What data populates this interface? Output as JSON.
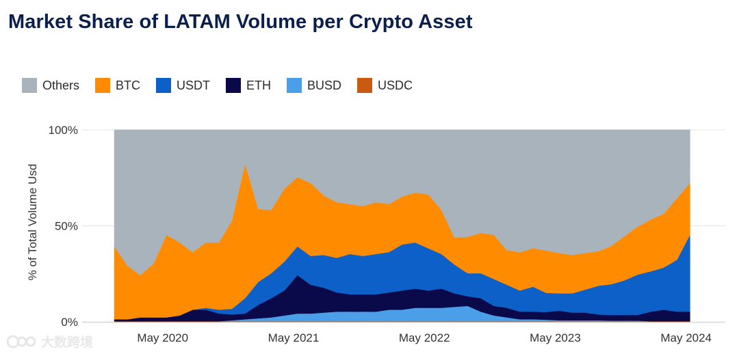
{
  "title": "Market Share of LATAM Volume per Crypto Asset",
  "watermark": "大数跨境",
  "chart_data": {
    "type": "area",
    "stacked": true,
    "normalized_percent": true,
    "ylabel": "% of Total Volume Usd",
    "xlabel": "",
    "ylim": [
      0,
      100
    ],
    "yticks": [
      "0%",
      "50%",
      "100%"
    ],
    "ytick_values": [
      0,
      50,
      100
    ],
    "xlim": [
      2020.0,
      2024.45
    ],
    "xticks": [
      "May 2020",
      "May 2021",
      "May 2022",
      "May 2023",
      "May 2024"
    ],
    "xtick_values": [
      2020.37,
      2021.37,
      2022.37,
      2023.37,
      2024.37
    ],
    "legend_position": "top-left",
    "x": [
      2020.0,
      2020.1,
      2020.2,
      2020.3,
      2020.4,
      2020.5,
      2020.6,
      2020.7,
      2020.8,
      2020.9,
      2021.0,
      2021.1,
      2021.2,
      2021.3,
      2021.4,
      2021.5,
      2021.6,
      2021.7,
      2021.8,
      2021.9,
      2022.0,
      2022.1,
      2022.2,
      2022.3,
      2022.4,
      2022.5,
      2022.6,
      2022.7,
      2022.8,
      2022.9,
      2023.0,
      2023.1,
      2023.2,
      2023.3,
      2023.4,
      2023.5,
      2023.6,
      2023.7,
      2023.8,
      2023.9,
      2024.0,
      2024.1,
      2024.2,
      2024.3,
      2024.4
    ],
    "series": [
      {
        "name": "USDC",
        "color": "#c85a12",
        "values": [
          0.3,
          0.3,
          0.3,
          0.3,
          0.3,
          0.3,
          0.3,
          0.3,
          0.3,
          0.3,
          0.3,
          0.3,
          0.3,
          0.3,
          0.3,
          0.3,
          0.3,
          0.3,
          0.3,
          0.3,
          0.3,
          0.3,
          0.3,
          0.3,
          0.3,
          0.3,
          0.3,
          0.3,
          0.3,
          0.3,
          0.3,
          0.3,
          0.3,
          0.3,
          0.3,
          0.3,
          0.3,
          0.3,
          0.3,
          0.3,
          0.3,
          0.3,
          0.3,
          0.3,
          0.3
        ]
      },
      {
        "name": "BUSD",
        "color": "#4a9fe8",
        "values": [
          0,
          0,
          0,
          0,
          0,
          0,
          0,
          0,
          0,
          0.5,
          1,
          1.5,
          2,
          3,
          4,
          4,
          4.5,
          5,
          5,
          5,
          5,
          6,
          6,
          7,
          7,
          7,
          7.5,
          8,
          5,
          3,
          2,
          1,
          1,
          0.8,
          0.5,
          0.5,
          0.5,
          0.5,
          0.3,
          0.3,
          0.3,
          0,
          0,
          0,
          0
        ]
      },
      {
        "name": "ETH",
        "color": "#0a0a4a",
        "values": [
          1,
          1,
          2,
          2,
          2,
          3,
          6,
          6,
          4,
          3,
          3,
          7,
          10,
          13,
          20,
          15,
          13,
          10,
          9,
          9,
          9,
          9,
          10,
          10,
          9,
          10,
          7,
          5,
          7,
          5,
          5,
          4,
          4,
          4,
          5,
          4,
          4,
          3,
          3,
          3,
          3,
          5,
          6,
          5,
          5
        ]
      },
      {
        "name": "USDT",
        "color": "#0d60c8",
        "values": [
          0,
          0,
          0,
          0,
          0,
          0,
          0,
          1,
          2,
          3,
          8,
          12,
          13,
          15,
          15,
          15,
          17,
          18,
          21,
          20,
          21,
          21,
          24,
          24,
          22,
          18,
          15,
          12,
          13,
          14,
          12,
          11,
          13,
          10,
          9,
          10,
          12,
          15,
          16,
          18,
          21,
          21,
          22,
          27,
          40
        ]
      },
      {
        "name": "BTC",
        "color": "#ff8c00",
        "values": [
          38,
          28,
          22,
          28,
          43,
          38,
          30,
          34,
          35,
          46,
          70,
          38,
          33,
          38,
          36,
          38,
          31,
          29,
          26,
          26,
          27,
          25,
          25,
          26,
          28,
          23,
          14,
          19,
          21,
          23,
          18,
          20,
          20,
          22,
          21,
          20,
          19,
          18,
          20,
          23,
          25,
          27,
          28,
          32,
          27
        ]
      },
      {
        "name": "Others",
        "color": "#a9b3bc",
        "values": [
          60.7,
          70.7,
          75.7,
          69.7,
          54.7,
          58.7,
          63.7,
          58.7,
          58.7,
          47.7,
          17.7,
          41.2,
          41.7,
          30.7,
          24.7,
          27.7,
          34.2,
          37.7,
          38.7,
          39.7,
          37.7,
          38.7,
          34.7,
          32.7,
          33.7,
          41.7,
          56.2,
          55.7,
          53.7,
          54.7,
          62.7,
          63.7,
          61.7,
          62.9,
          64.2,
          65.2,
          64.2,
          63.2,
          60.4,
          55.4,
          50.4,
          46.7,
          43.7,
          35.7,
          27.7
        ]
      }
    ]
  },
  "legend": [
    {
      "name": "Others",
      "color": "#a9b3bc"
    },
    {
      "name": "BTC",
      "color": "#ff8c00"
    },
    {
      "name": "USDT",
      "color": "#0d60c8"
    },
    {
      "name": "ETH",
      "color": "#0a0a4a"
    },
    {
      "name": "BUSD",
      "color": "#4a9fe8"
    },
    {
      "name": "USDC",
      "color": "#c85a12"
    }
  ]
}
